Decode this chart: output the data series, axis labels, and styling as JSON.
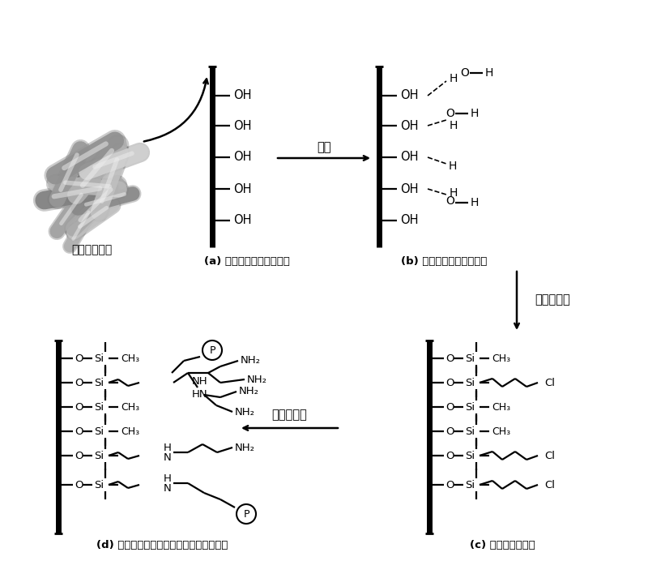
{
  "bg": "#ffffff",
  "K": "#000000",
  "hnt_label": "埃洛石纳米管",
  "label_a": "(a) 处理埃洛石纳米管表面",
  "label_b": "(b) 水合埃洛石纳米管表面",
  "label_c": "(c) 后续的聚合反应",
  "label_d": "(d) 埃洛石纳米管基体锇合型离子交换树脂",
  "arrow_ab": "润湿",
  "arrow_bc": "硅烷偶联剂",
  "arrow_cd": "聚乙烯亚胺",
  "CH3": "CH₃",
  "NH2": "NH₂",
  "NH": "NH",
  "HN": "HN",
  "N": "N",
  "H": "H",
  "O": "O",
  "Si": "Si",
  "Cl": "Cl",
  "P": "P",
  "OH": "OH"
}
